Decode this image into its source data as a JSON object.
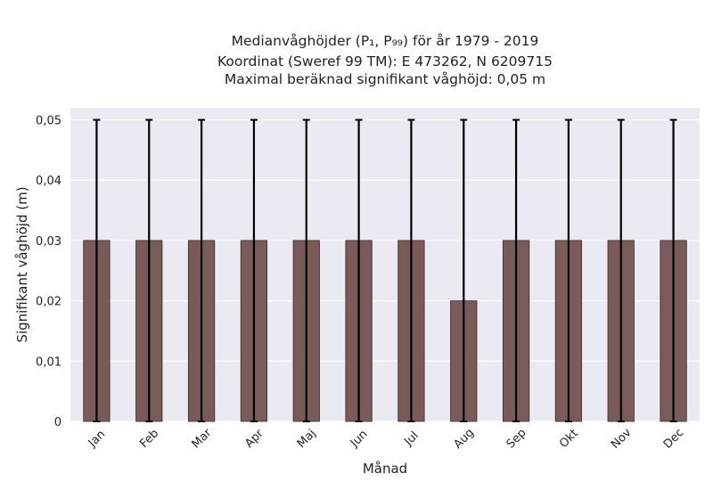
{
  "chart_data": {
    "type": "bar",
    "title_lines": [
      "Medianvåghöjder (P₁, P₉₉) för år 1979 - 2019",
      "Koordinat (Sweref 99 TM): E 473262, N 6209715",
      "Maximal beräknad signifikant våghöjd: 0,05 m"
    ],
    "xlabel": "Månad",
    "ylabel": "Signifikant våghöjd (m)",
    "categories": [
      "Jan",
      "Feb",
      "Mar",
      "Apr",
      "Maj",
      "Jun",
      "Jul",
      "Aug",
      "Sep",
      "Okt",
      "Nov",
      "Dec"
    ],
    "values": [
      0.03,
      0.03,
      0.03,
      0.03,
      0.03,
      0.03,
      0.03,
      0.02,
      0.03,
      0.03,
      0.03,
      0.03
    ],
    "error_low": [
      0,
      0,
      0,
      0,
      0,
      0,
      0,
      0,
      0,
      0,
      0,
      0
    ],
    "error_high": [
      0.05,
      0.05,
      0.05,
      0.05,
      0.05,
      0.05,
      0.05,
      0.05,
      0.05,
      0.05,
      0.05,
      0.05
    ],
    "ylim": [
      0,
      0.052
    ],
    "yticks": [
      0,
      0.01,
      0.02,
      0.03,
      0.04,
      0.05
    ],
    "ytick_labels": [
      "0",
      "0,01",
      "0,02",
      "0,03",
      "0,04",
      "0,05"
    ],
    "grid": true,
    "colors": {
      "bar": "#7b5a5a",
      "bar_edge": "#3a2a2a",
      "error": "#000000",
      "plot_bg": "#eaeaf2",
      "grid": "#ffffff"
    }
  }
}
